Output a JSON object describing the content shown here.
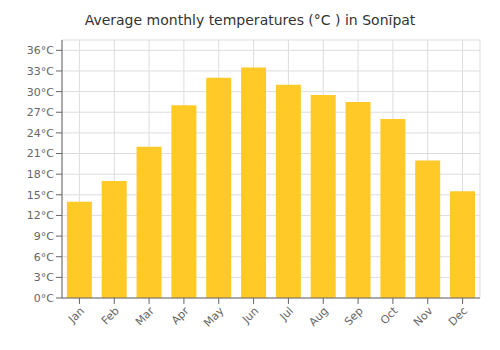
{
  "chart_data": {
    "type": "bar",
    "title": "Average monthly temperatures (°C ) in Sonīpat",
    "categories": [
      "Jan",
      "Feb",
      "Mar",
      "Apr",
      "May",
      "Jun",
      "Jul",
      "Aug",
      "Sep",
      "Oct",
      "Nov",
      "Dec"
    ],
    "values": [
      14,
      17,
      22,
      28,
      32,
      33.5,
      31,
      29.5,
      28.5,
      26,
      20,
      15.5
    ],
    "color": "#FFCA28",
    "ylim": [
      0,
      37.5
    ],
    "yticks": [
      {
        "value": 0,
        "label": "0°C"
      },
      {
        "value": 3,
        "label": "3°C"
      },
      {
        "value": 6,
        "label": "6°C"
      },
      {
        "value": 9,
        "label": "9°C"
      },
      {
        "value": 12,
        "label": "12°C"
      },
      {
        "value": 15,
        "label": "15°C"
      },
      {
        "value": 18,
        "label": "18°C"
      },
      {
        "value": 21,
        "label": "21°C"
      },
      {
        "value": 24,
        "label": "24°C"
      },
      {
        "value": 27,
        "label": "27°C"
      },
      {
        "value": 30,
        "label": "30°C"
      },
      {
        "value": 33,
        "label": "33°C"
      },
      {
        "value": 36,
        "label": "36°C"
      }
    ],
    "grid": true
  }
}
